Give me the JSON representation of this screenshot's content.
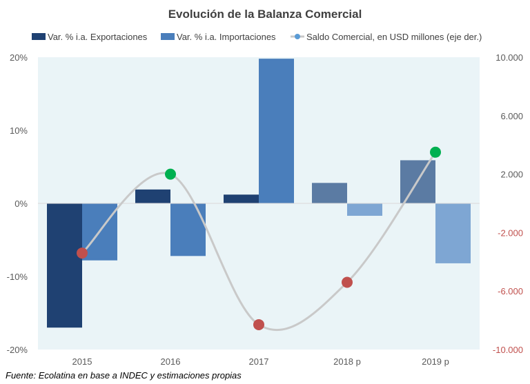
{
  "chart_data": {
    "type": "bar",
    "title": "Evolución de la Balanza Comercial",
    "categories": [
      "2015",
      "2016",
      "2017",
      "2018 p",
      "2019 p"
    ],
    "series": [
      {
        "name": "Var. % i.a. Exportaciones",
        "type": "bar",
        "axis": "left",
        "values": [
          -17.0,
          1.9,
          1.2,
          2.8,
          5.9
        ],
        "colors": [
          "#1f4172",
          "#1f4172",
          "#1f4172",
          "#5b7ba3",
          "#5b7ba3"
        ]
      },
      {
        "name": "Var. % i.a. Importaciones",
        "type": "bar",
        "axis": "left",
        "values": [
          -7.8,
          -7.2,
          19.8,
          -1.7,
          -8.2
        ],
        "colors": [
          "#4a7ebb",
          "#4a7ebb",
          "#4a7ebb",
          "#7ea6d3",
          "#7ea6d3"
        ]
      },
      {
        "name": "Saldo Comercial, en USD millones (eje der.)",
        "type": "line",
        "axis": "right",
        "values": [
          -3400,
          2000,
          -8300,
          -5400,
          3500
        ],
        "color": "#c9c9c9",
        "marker_colors": [
          "#c0504d",
          "#00b050",
          "#c0504d",
          "#c0504d",
          "#00b050"
        ]
      }
    ],
    "left_axis": {
      "min": -20,
      "max": 20,
      "ticks": [
        "20%",
        "10%",
        "0%",
        "-10%",
        "-20%"
      ],
      "tick_values": [
        20,
        10,
        0,
        -10,
        -20
      ]
    },
    "right_axis": {
      "min": -10000,
      "max": 10000,
      "ticks": [
        "10.000",
        "6.000",
        "2.000",
        "-2.000",
        "-6.000",
        "-10.000"
      ],
      "tick_values": [
        10000,
        6000,
        2000,
        -2000,
        -6000,
        -10000
      ],
      "negative_color": "#c0504d"
    },
    "legend": "top",
    "grid": false,
    "plot_background": "#eaf4f7",
    "source": "Fuente: Ecolatina en base a INDEC y estimaciones propias"
  }
}
